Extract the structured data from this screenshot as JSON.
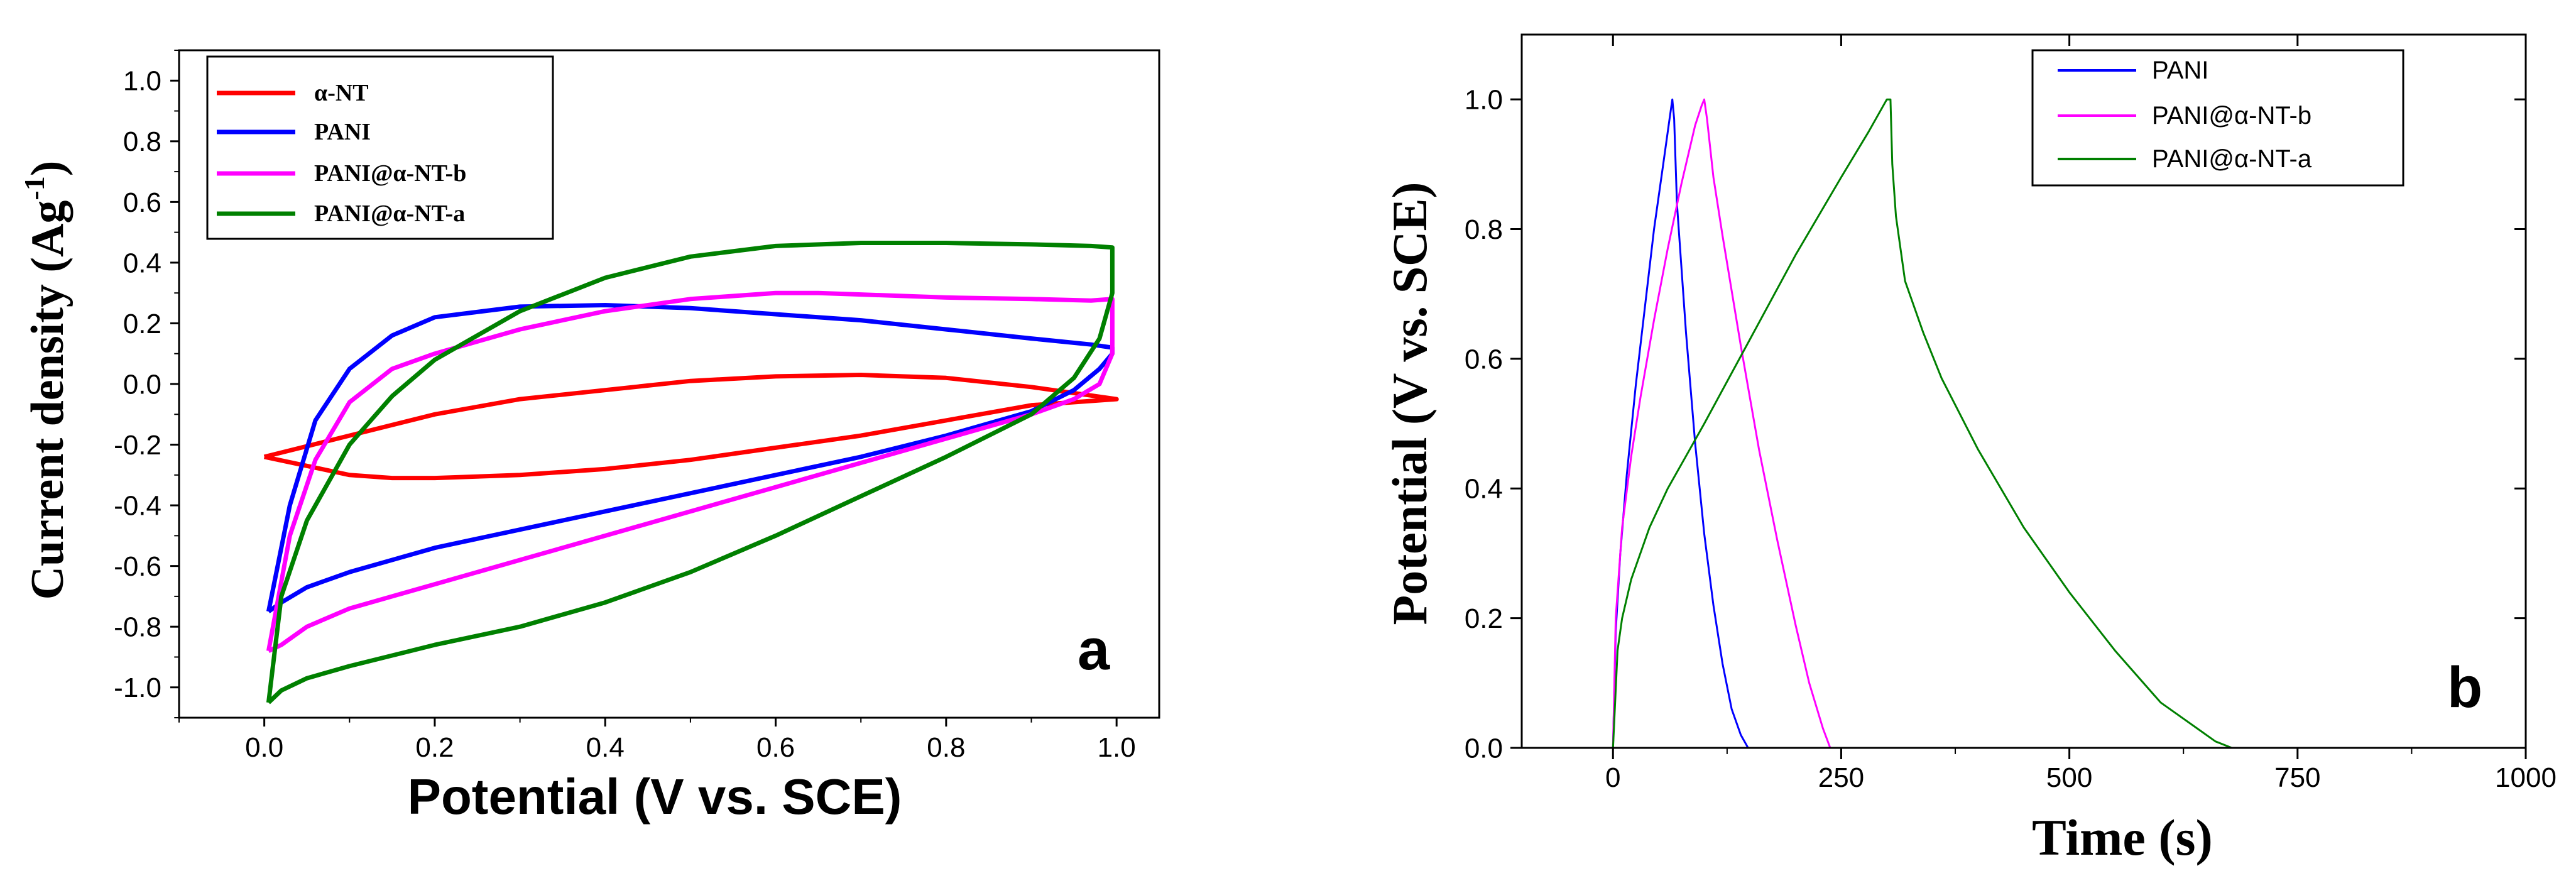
{
  "chart_data": [
    {
      "type": "line",
      "panel_label": "a",
      "xlabel": "Potential (V vs. SCE)",
      "ylabel_main": "Current density (Ag",
      "ylabel_sup": "-1",
      "ylabel_close": ")",
      "xlim": [
        -0.1,
        1.05
      ],
      "ylim": [
        -1.1,
        1.1
      ],
      "x_ticks": [
        0.0,
        0.2,
        0.4,
        0.6,
        0.8,
        1.0
      ],
      "x_tick_labels": [
        "0.0",
        "0.2",
        "0.4",
        "0.6",
        "0.8",
        "1.0"
      ],
      "y_ticks": [
        -1.0,
        -0.8,
        -0.6,
        -0.4,
        -0.2,
        0.0,
        0.2,
        0.4,
        0.6,
        0.8,
        1.0
      ],
      "y_tick_labels": [
        "-1.0",
        "-0.8",
        "-0.6",
        "-0.4",
        "-0.2",
        "0.0",
        "0.2",
        "0.4",
        "0.6",
        "0.8",
        "1.0"
      ],
      "legend_position": "top-left",
      "series": [
        {
          "name": "α-NT",
          "color": "#ff0000",
          "x": [
            0.0,
            0.1,
            0.2,
            0.3,
            0.4,
            0.5,
            0.6,
            0.7,
            0.8,
            0.9,
            1.0,
            0.9,
            0.8,
            0.7,
            0.6,
            0.5,
            0.4,
            0.3,
            0.2,
            0.15,
            0.1,
            0.05,
            0.0
          ],
          "y": [
            -0.24,
            -0.17,
            -0.1,
            -0.05,
            -0.02,
            0.01,
            0.025,
            0.03,
            0.02,
            -0.01,
            -0.05,
            -0.07,
            -0.12,
            -0.17,
            -0.21,
            -0.25,
            -0.28,
            -0.3,
            -0.31,
            -0.31,
            -0.3,
            -0.27,
            -0.24
          ]
        },
        {
          "name": "PANI",
          "color": "#0000ff",
          "x": [
            0.005,
            0.03,
            0.06,
            0.1,
            0.15,
            0.2,
            0.3,
            0.4,
            0.5,
            0.6,
            0.7,
            0.8,
            0.9,
            0.97,
            0.995,
            0.995,
            0.98,
            0.95,
            0.9,
            0.8,
            0.7,
            0.6,
            0.5,
            0.4,
            0.3,
            0.2,
            0.1,
            0.05,
            0.02,
            0.005
          ],
          "y": [
            -0.75,
            -0.4,
            -0.12,
            0.05,
            0.16,
            0.22,
            0.255,
            0.26,
            0.25,
            0.23,
            0.21,
            0.18,
            0.15,
            0.13,
            0.12,
            0.1,
            0.05,
            -0.02,
            -0.09,
            -0.17,
            -0.24,
            -0.3,
            -0.36,
            -0.42,
            -0.48,
            -0.54,
            -0.62,
            -0.67,
            -0.72,
            -0.75
          ]
        },
        {
          "name": "PANI@α-NT-b",
          "color": "#ff00ff",
          "x": [
            0.005,
            0.03,
            0.06,
            0.1,
            0.15,
            0.2,
            0.3,
            0.4,
            0.5,
            0.6,
            0.65,
            0.7,
            0.8,
            0.9,
            0.97,
            0.995,
            0.995,
            0.98,
            0.95,
            0.9,
            0.8,
            0.7,
            0.6,
            0.5,
            0.4,
            0.3,
            0.2,
            0.1,
            0.05,
            0.02,
            0.005
          ],
          "y": [
            -0.88,
            -0.5,
            -0.25,
            -0.06,
            0.05,
            0.1,
            0.18,
            0.24,
            0.28,
            0.3,
            0.3,
            0.295,
            0.285,
            0.28,
            0.275,
            0.28,
            0.1,
            0.0,
            -0.05,
            -0.1,
            -0.18,
            -0.26,
            -0.34,
            -0.42,
            -0.5,
            -0.58,
            -0.66,
            -0.74,
            -0.8,
            -0.86,
            -0.88
          ]
        },
        {
          "name": "PANI@α-NT-a",
          "color": "#008000",
          "x": [
            0.005,
            0.02,
            0.05,
            0.1,
            0.15,
            0.2,
            0.3,
            0.4,
            0.5,
            0.6,
            0.7,
            0.8,
            0.9,
            0.97,
            0.995,
            0.995,
            0.98,
            0.95,
            0.9,
            0.8,
            0.7,
            0.6,
            0.5,
            0.4,
            0.3,
            0.2,
            0.1,
            0.05,
            0.02,
            0.005
          ],
          "y": [
            -1.05,
            -0.7,
            -0.45,
            -0.2,
            -0.04,
            0.08,
            0.24,
            0.35,
            0.42,
            0.455,
            0.465,
            0.465,
            0.46,
            0.455,
            0.45,
            0.3,
            0.15,
            0.02,
            -0.1,
            -0.24,
            -0.37,
            -0.5,
            -0.62,
            -0.72,
            -0.8,
            -0.86,
            -0.93,
            -0.97,
            -1.01,
            -1.05
          ]
        }
      ]
    },
    {
      "type": "line",
      "panel_label": "b",
      "xlabel": "Time (s)",
      "ylabel": "Potential (V vs. SCE)",
      "xlim": [
        -100,
        1000
      ],
      "ylim": [
        0.0,
        1.1
      ],
      "x_ticks": [
        0,
        250,
        500,
        750,
        1000
      ],
      "x_tick_labels": [
        "0",
        "250",
        "500",
        "750",
        "1000"
      ],
      "y_ticks": [
        0.0,
        0.2,
        0.4,
        0.6,
        0.8,
        1.0
      ],
      "y_tick_labels": [
        "0.0",
        "0.2",
        "0.4",
        "0.6",
        "0.8",
        "1.0"
      ],
      "legend_position": "top-right",
      "series": [
        {
          "name": "PANI",
          "color": "#0000ff",
          "x": [
            0,
            3,
            8,
            15,
            25,
            35,
            45,
            55,
            62,
            65,
            67,
            70,
            80,
            90,
            100,
            110,
            120,
            130,
            140,
            148
          ],
          "y": [
            0.0,
            0.18,
            0.3,
            0.42,
            0.56,
            0.68,
            0.8,
            0.9,
            0.97,
            1.0,
            0.97,
            0.84,
            0.64,
            0.47,
            0.33,
            0.22,
            0.13,
            0.06,
            0.02,
            0.0
          ]
        },
        {
          "name": "PANI@α-NT-b",
          "color": "#ff00ff",
          "x": [
            0,
            3,
            10,
            20,
            30,
            45,
            60,
            75,
            90,
            97,
            100,
            103,
            110,
            120,
            140,
            160,
            180,
            200,
            215,
            230,
            238
          ],
          "y": [
            0.0,
            0.2,
            0.34,
            0.45,
            0.54,
            0.66,
            0.77,
            0.87,
            0.96,
            0.99,
            1.0,
            0.97,
            0.88,
            0.79,
            0.62,
            0.46,
            0.32,
            0.19,
            0.1,
            0.03,
            0.0
          ]
        },
        {
          "name": "PANI@α-NT-a",
          "color": "#008000",
          "x": [
            0,
            5,
            10,
            20,
            40,
            60,
            80,
            100,
            150,
            200,
            250,
            280,
            300,
            304,
            306,
            310,
            320,
            340,
            360,
            400,
            450,
            500,
            550,
            600,
            640,
            660,
            678
          ],
          "y": [
            0.0,
            0.15,
            0.2,
            0.26,
            0.34,
            0.4,
            0.45,
            0.5,
            0.63,
            0.76,
            0.88,
            0.95,
            1.0,
            1.0,
            0.9,
            0.82,
            0.72,
            0.64,
            0.57,
            0.46,
            0.34,
            0.24,
            0.15,
            0.07,
            0.03,
            0.01,
            0.0
          ]
        }
      ]
    }
  ]
}
